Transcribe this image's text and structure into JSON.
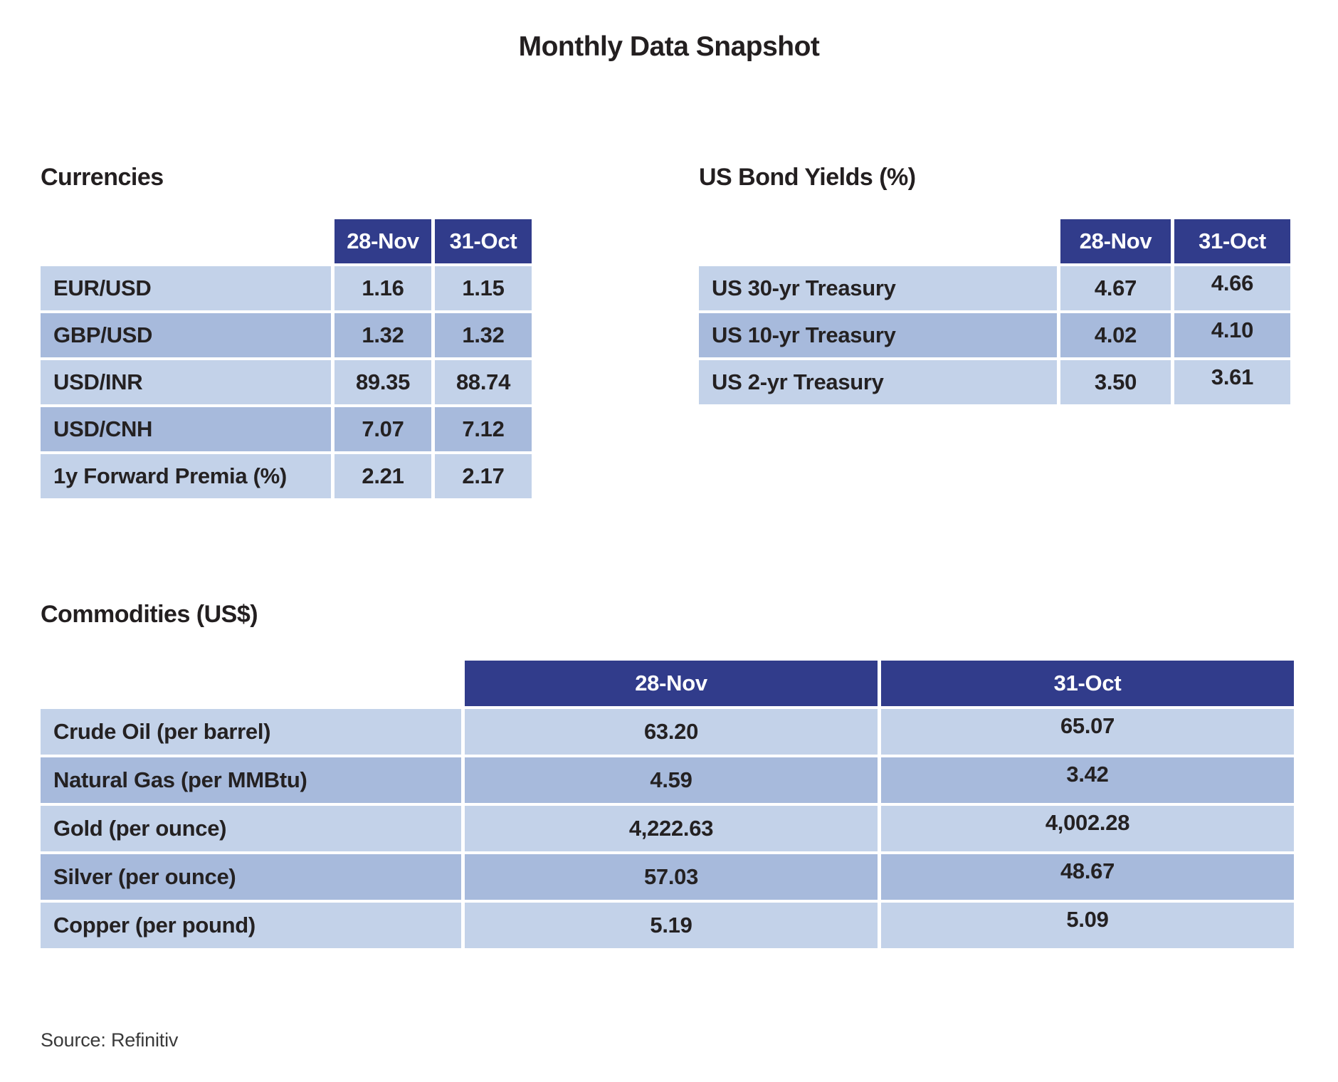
{
  "page": {
    "title": "Monthly Data Snapshot",
    "source": "Source: Refinitiv"
  },
  "colors": {
    "header_bg": "#313C8B",
    "row_light": "#C3D2E9",
    "row_dark": "#A7BADC",
    "text": "#242122"
  },
  "chart_data": [
    {
      "type": "table",
      "title": "Currencies",
      "columns": [
        "",
        "28-Nov",
        "31-Oct"
      ],
      "rows": [
        [
          "EUR/USD",
          "1.16",
          "1.15"
        ],
        [
          "GBP/USD",
          "1.32",
          "1.32"
        ],
        [
          "USD/INR",
          "89.35",
          "88.74"
        ],
        [
          "USD/CNH",
          "7.07",
          "7.12"
        ],
        [
          "1y Forward Premia (%)",
          "2.21",
          "2.17"
        ]
      ]
    },
    {
      "type": "table",
      "title": "US Bond Yields (%)",
      "columns": [
        "",
        "28-Nov",
        "31-Oct"
      ],
      "rows": [
        [
          "US 30-yr Treasury",
          "4.67",
          "4.66"
        ],
        [
          "US 10-yr Treasury",
          "4.02",
          "4.10"
        ],
        [
          "US 2-yr Treasury",
          "3.50",
          "3.61"
        ]
      ]
    },
    {
      "type": "table",
      "title": "Commodities (US$)",
      "columns": [
        "",
        "28-Nov",
        "31-Oct"
      ],
      "rows": [
        [
          "Crude Oil (per barrel)",
          "63.20",
          "65.07"
        ],
        [
          "Natural Gas (per MMBtu)",
          "4.59",
          "3.42"
        ],
        [
          "Gold (per ounce)",
          "4,222.63",
          "4,002.28"
        ],
        [
          "Silver (per ounce)",
          "57.03",
          "48.67"
        ],
        [
          "Copper (per pound)",
          "5.19",
          "5.09"
        ]
      ]
    }
  ]
}
